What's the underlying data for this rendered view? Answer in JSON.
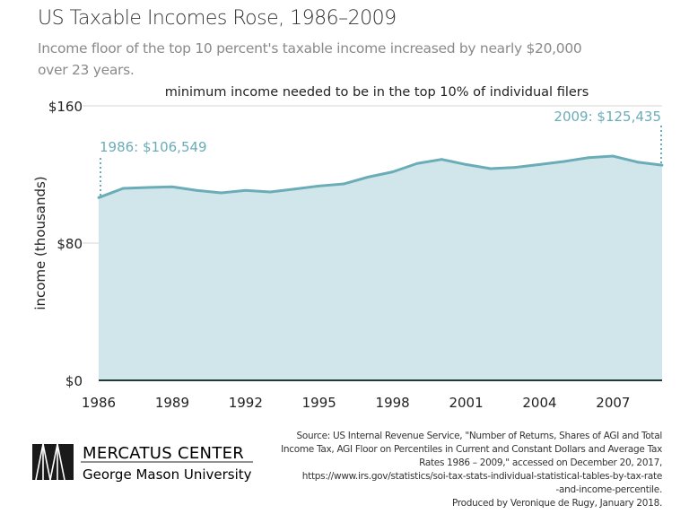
{
  "title": "US Taxable Incomes Rose, 1986–2009",
  "subtitle": "Income floor of the top 10 percent's taxable income increased by nearly $20,000 over 23 years.",
  "chart_data": {
    "type": "area",
    "title": "minimum income needed to be in the top 10% of individual filers",
    "ylabel": "income (thousands)",
    "xlabel": "",
    "x": [
      1986,
      1987,
      1988,
      1989,
      1990,
      1991,
      1992,
      1993,
      1994,
      1995,
      1996,
      1997,
      1998,
      1999,
      2000,
      2001,
      2002,
      2003,
      2004,
      2005,
      2006,
      2007,
      2008,
      2009
    ],
    "values": [
      106.5,
      111.9,
      112.4,
      112.8,
      110.7,
      109.3,
      110.7,
      109.8,
      111.5,
      113.3,
      114.5,
      118.5,
      121.5,
      126.4,
      128.8,
      125.8,
      123.4,
      124.1,
      125.8,
      127.6,
      129.8,
      130.7,
      127.2,
      125.4
    ],
    "xlim": [
      1986,
      2009
    ],
    "ylim": [
      0,
      160
    ],
    "xticks": [
      1986,
      1989,
      1992,
      1995,
      1998,
      2001,
      2004,
      2007
    ],
    "xtick_labels": [
      "1986",
      "1989",
      "1992",
      "1995",
      "1998",
      "2001",
      "2004",
      "2007"
    ],
    "yticks": [
      0,
      80,
      160
    ],
    "ytick_labels": [
      "$0",
      "$80",
      "$160"
    ],
    "grid": "horizontal",
    "annotations": [
      {
        "text": "1986: $106,549",
        "x": 1986,
        "y": 106.549
      },
      {
        "text": "2009: $125,435",
        "x": 2009,
        "y": 125.435
      }
    ],
    "colors": {
      "line": "#6aadb8",
      "fill": "#d1e6ea",
      "annotation": "#6aadb8",
      "grid": "#dddddd",
      "baseline": "#1e3a3a"
    }
  },
  "source": [
    "Source: US Internal Revenue Service, \"Number of Returns, Shares of AGI and Total",
    "Income Tax, AGI Floor on Percentiles in Current and Constant Dollars and Average Tax",
    "Rates 1986 – 2009,\" accessed on December 20, 2017,",
    "https://www.irs.gov/statistics/soi-tax-stats-individual-statistical-tables-by-tax-rate",
    "-and-income-percentile.",
    "Produced by Veronique de Rugy, January 2018."
  ],
  "logo": {
    "line1": "MERCATUS CENTER",
    "line2": "George Mason University"
  }
}
